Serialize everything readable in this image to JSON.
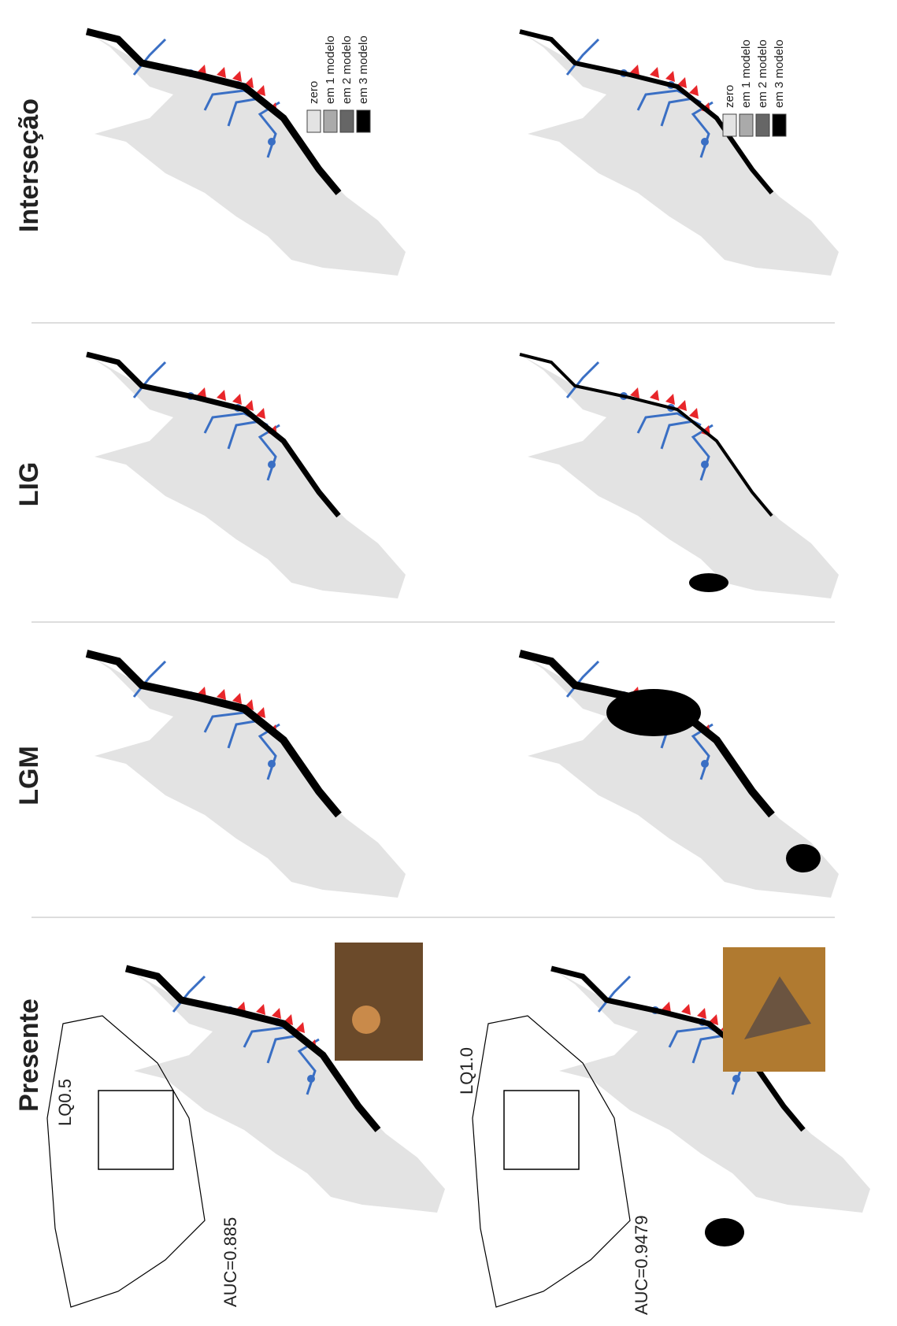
{
  "columns": [
    {
      "title": "Presente"
    },
    {
      "title": "LGM"
    },
    {
      "title": "LIG"
    },
    {
      "title": "Interseção"
    }
  ],
  "species": [
    {
      "label": "LQ0.5",
      "auc": "AUC=0.885"
    },
    {
      "label": "LQ1.0",
      "auc": "AUC=0.9479"
    }
  ],
  "legend": {
    "items": [
      "zero",
      "em 1 modelo",
      "em 2 modelo",
      "em 3 modelo"
    ]
  }
}
